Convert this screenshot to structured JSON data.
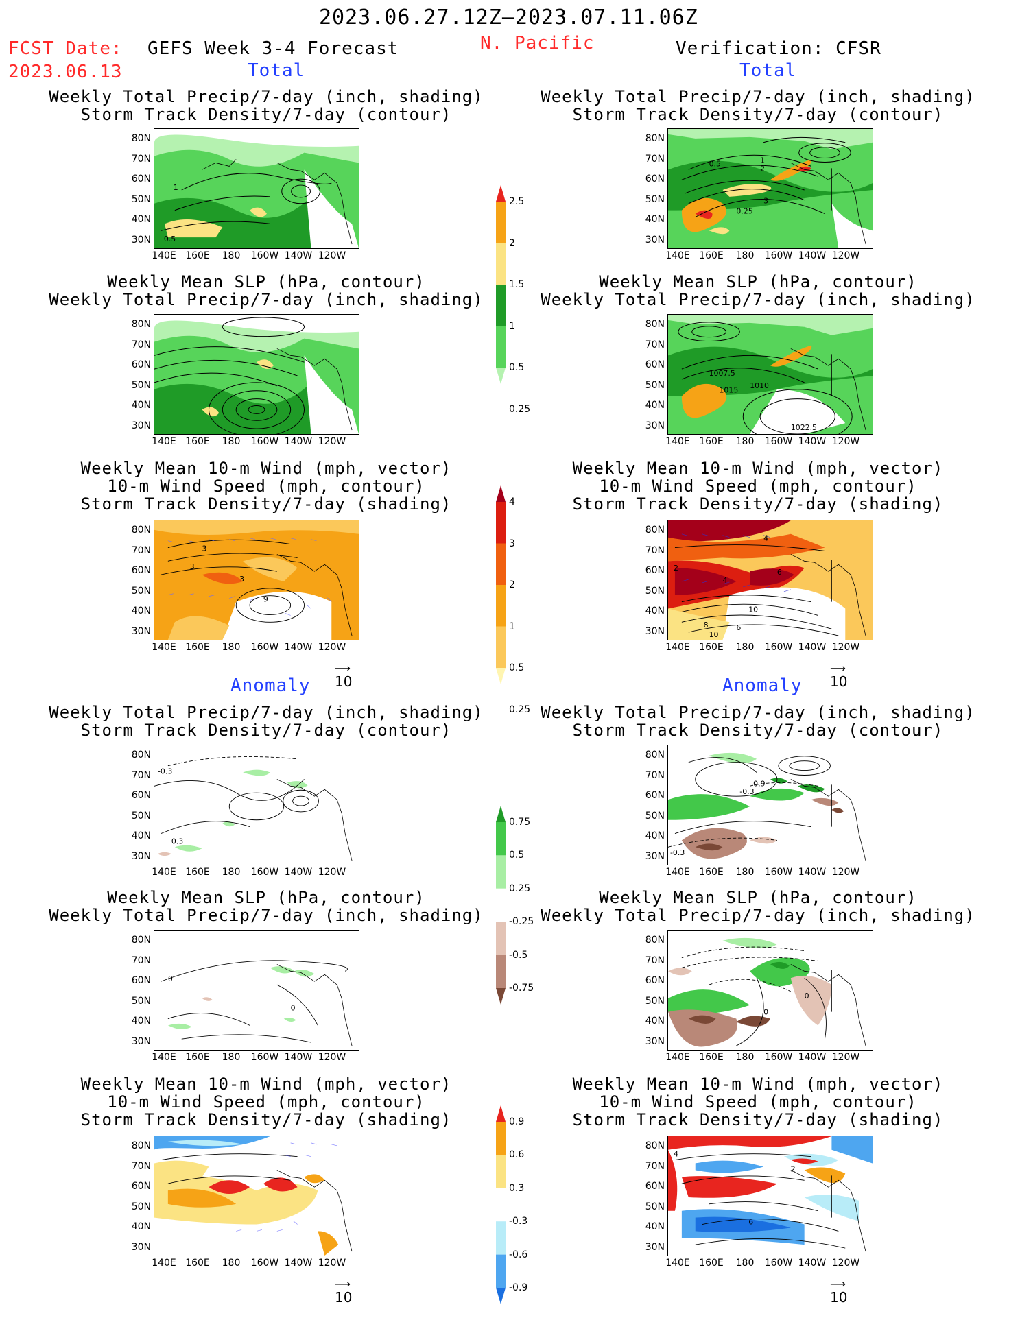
{
  "header": {
    "period": "2023.06.27.12Z–2023.07.11.06Z",
    "fcst_label": "FCST Date:",
    "fcst_date": "2023.06.13",
    "model": "GEFS Week 3-4 Forecast",
    "region": "N. Pacific",
    "verification": "Verification: CFSR"
  },
  "sections": {
    "total": "Total",
    "anomaly": "Anomaly"
  },
  "titles": {
    "precip_storm": [
      "Weekly Total Precip/7-day (inch, shading)",
      "Storm Track Density/7-day (contour)"
    ],
    "slp_precip": [
      "Weekly Mean SLP (hPa, contour)",
      "Weekly Total Precip/7-day (inch, shading)"
    ],
    "wind_storm": [
      "Weekly Mean 10-m Wind (mph, vector)",
      "10-m Wind Speed (mph, contour)",
      "Storm Track Density/7-day (shading)"
    ]
  },
  "axes": {
    "lat": [
      "80N",
      "70N",
      "60N",
      "50N",
      "40N",
      "30N"
    ],
    "lon": [
      "140E",
      "160E",
      "180",
      "160W",
      "140W",
      "120W"
    ]
  },
  "vector_ref": "10",
  "colorbars": {
    "precip_total": {
      "labels": [
        "2.5",
        "2",
        "1.5",
        "1",
        "0.5",
        "0.25"
      ],
      "colors": [
        "#e8251f",
        "#f6a316",
        "#fbe383",
        "#1f9b27",
        "#57d45a",
        "#b5f2b0"
      ]
    },
    "storm_total": {
      "labels": [
        "4",
        "3",
        "2",
        "1",
        "0.5",
        "0.25"
      ],
      "colors": [
        "#a4001a",
        "#dc1e10",
        "#f06010",
        "#f6a316",
        "#fbc85a",
        "#fff5b0"
      ]
    },
    "precip_anom": {
      "labels": [
        "0.75",
        "0.5",
        "0.25",
        "-0.25",
        "-0.5",
        "-0.75"
      ],
      "colors": [
        "#1f9b27",
        "#43c84a",
        "#a8eea4",
        "#ffffff",
        "#e3c3b5",
        "#b98878",
        "#7a4836"
      ]
    },
    "storm_anom": {
      "labels": [
        "0.9",
        "0.6",
        "0.3",
        "-0.3",
        "-0.6",
        "-0.9"
      ],
      "colors": [
        "#e8251f",
        "#f6a316",
        "#fbe383",
        "#ffffff",
        "#b8ecf8",
        "#4ea6f0",
        "#1a6fe0"
      ]
    }
  },
  "contour_labels": {
    "f1": [
      "1",
      "0.5"
    ],
    "v1": [
      "0.5",
      "1",
      "2",
      "3",
      "0.25"
    ],
    "v2": [
      "1007.5",
      "1015",
      "1010",
      "1022.5"
    ],
    "f3": [
      "3",
      "3",
      "3",
      "9"
    ],
    "v3": [
      "4",
      "2",
      "4",
      "6",
      "10",
      "8",
      "6",
      "10"
    ],
    "f4": [
      "-0.3",
      "0.3"
    ],
    "v4": [
      "0.9",
      "-0.3",
      "-0.3"
    ],
    "f5": [
      "0",
      "0"
    ],
    "v5": [
      "0",
      "0"
    ],
    "v6": [
      "4",
      "2",
      "6"
    ]
  }
}
